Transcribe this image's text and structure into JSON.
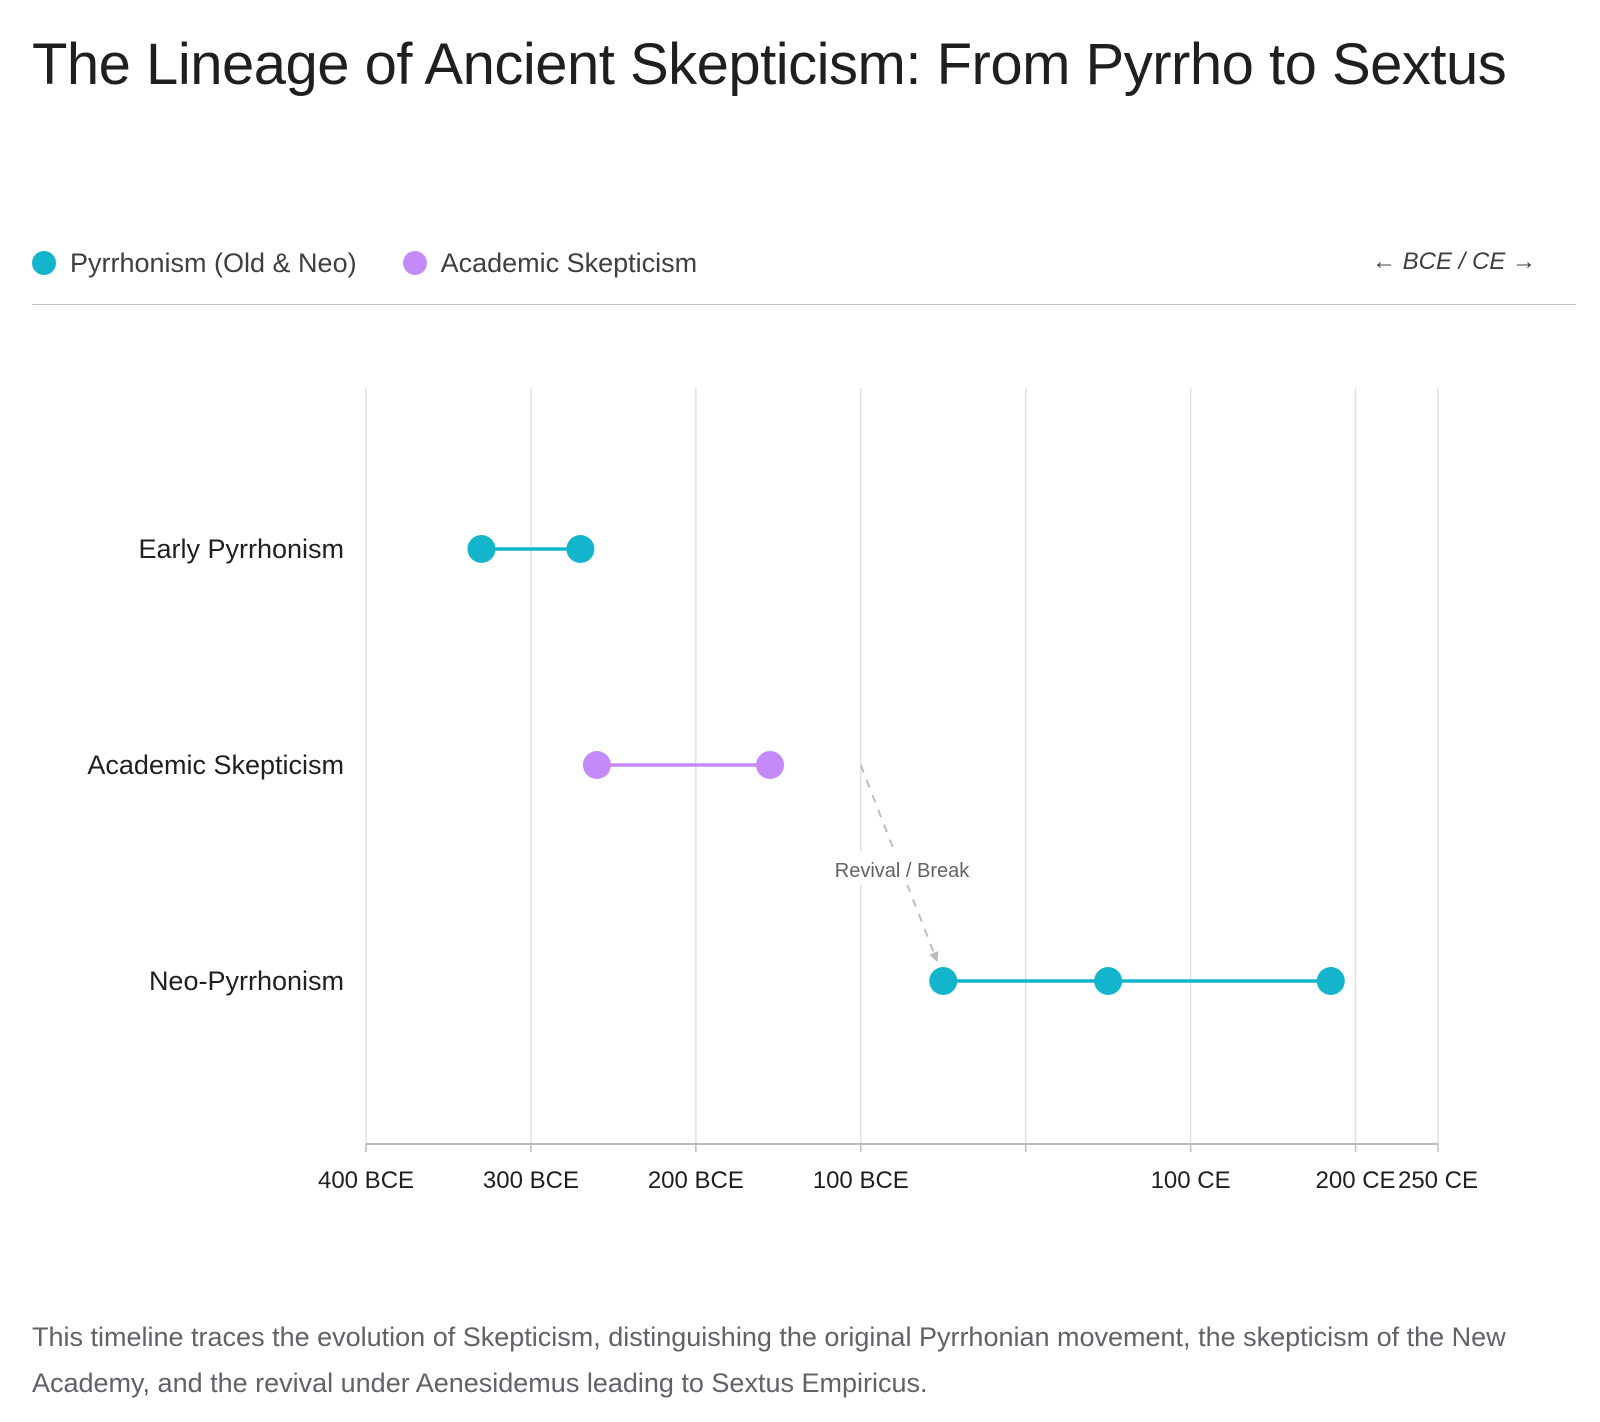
{
  "title": "The Lineage of Ancient Skepticism: From Pyrrho to Sextus",
  "legend": [
    {
      "label": "Pyrrhonism (Old & Neo)",
      "color": "#12b5cb"
    },
    {
      "label": "Academic Skepticism",
      "color": "#c58af9"
    }
  ],
  "axis_note": "← BCE / CE →",
  "caption": "This timeline traces the evolution of Skepticism, distinguishing the original Pyrrhonian movement, the skepticism of the New Academy, and the revival under Aenesidemus leading to Sextus Empiricus.",
  "chart_data": {
    "type": "scatter",
    "xlim": [
      -400,
      250
    ],
    "grid": true,
    "x_ticks": [
      {
        "value": -400,
        "label": "400 BCE"
      },
      {
        "value": -300,
        "label": "300 BCE"
      },
      {
        "value": -200,
        "label": "200 BCE"
      },
      {
        "value": -100,
        "label": "100 BCE"
      },
      {
        "value": 0,
        "label": ""
      },
      {
        "value": 100,
        "label": "100 CE"
      },
      {
        "value": 200,
        "label": "200 CE"
      },
      {
        "value": 250,
        "label": "250 CE"
      }
    ],
    "categories": [
      "Early Pyrrhonism",
      "Academic Skepticism",
      "Neo-Pyrrhonism"
    ],
    "series": [
      {
        "category": "Early Pyrrhonism",
        "color": "#12b5cb",
        "points": [
          -330,
          -270
        ]
      },
      {
        "category": "Academic Skepticism",
        "color": "#c58af9",
        "points": [
          -260,
          -155
        ]
      },
      {
        "category": "Neo-Pyrrhonism",
        "color": "#12b5cb",
        "points": [
          -50,
          50,
          185
        ]
      }
    ],
    "annotations": [
      {
        "text": "Revival / Break",
        "from": {
          "x": -100,
          "category": "Academic Skepticism"
        },
        "to": {
          "x": -50,
          "category": "Neo-Pyrrhonism"
        },
        "style": "dashed-arrow",
        "color": "#bdbdbd"
      }
    ]
  }
}
